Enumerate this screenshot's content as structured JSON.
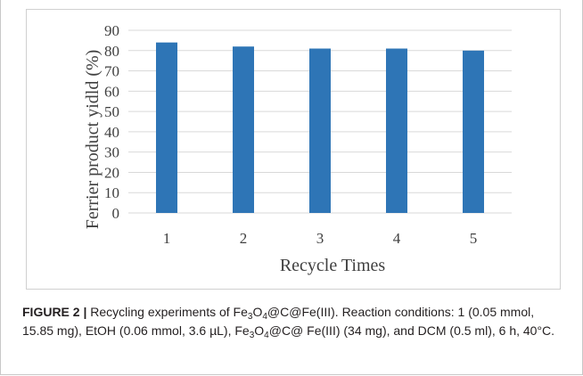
{
  "chart_data": {
    "type": "bar",
    "categories": [
      "1",
      "2",
      "3",
      "4",
      "5"
    ],
    "values": [
      84,
      82,
      81,
      81,
      80
    ],
    "xlabel": "Recycle Times",
    "ylabel": "Ferrier product yidld (%)",
    "ylim": [
      0,
      90
    ],
    "yticks": [
      "0",
      "10",
      "20",
      "30",
      "40",
      "50",
      "60",
      "70",
      "80",
      "90"
    ],
    "grid": true,
    "bar_color": "#2e75b6"
  },
  "caption": {
    "label": "FIGURE 2 |",
    "text_1": " Recycling experiments of Fe",
    "sub_1": "3",
    "text_2": "O",
    "sub_2": "4",
    "text_3": "@C@Fe(III). Reaction conditions: 1 (0.05 mmol, 15.85 mg), EtOH (0.06 mmol, 3.6 µL), Fe",
    "sub_3": "3",
    "text_4": "O",
    "sub_4": "4",
    "text_5": "@C@ Fe(III) (34 mg), and DCM (0.5 ml), 6 h, 40°C."
  }
}
